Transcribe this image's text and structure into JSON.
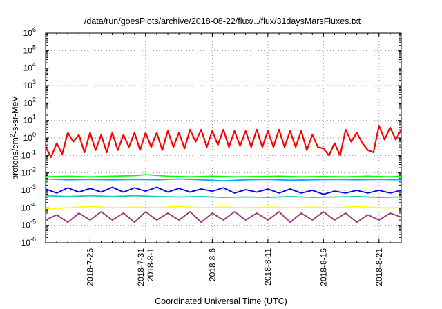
{
  "chart_data": {
    "type": "line",
    "title": "/data/run/goesPlots/archive/2018-08-22/flux/../flux/31daysMarsFluxes.txt",
    "xlabel": "Coordinated Universal Time (UTC)",
    "ylabel": "protons/cm2-s-sr-MeV",
    "ylabel_parts": {
      "pre": "protons/cm",
      "sup": "2",
      "post": "-s-sr-MeV"
    },
    "y_scale": "log",
    "ylim": [
      1e-06,
      1000000.0
    ],
    "y_ticks": [
      {
        "exp": -6,
        "base": "10",
        "sup": "-6"
      },
      {
        "exp": -5,
        "base": "10",
        "sup": "-5"
      },
      {
        "exp": -4,
        "base": "10",
        "sup": "-4"
      },
      {
        "exp": -3,
        "base": "10",
        "sup": "-3"
      },
      {
        "exp": -2,
        "base": "10",
        "sup": "-2"
      },
      {
        "exp": -1,
        "base": "10",
        "sup": "-1"
      },
      {
        "exp": 0,
        "base": "10",
        "sup": "0"
      },
      {
        "exp": 1,
        "base": "10",
        "sup": "1"
      },
      {
        "exp": 2,
        "base": "10",
        "sup": "2"
      },
      {
        "exp": 3,
        "base": "10",
        "sup": "3"
      },
      {
        "exp": 4,
        "base": "10",
        "sup": "4"
      },
      {
        "exp": 5,
        "base": "10",
        "sup": "5"
      },
      {
        "exp": 6,
        "base": "10",
        "sup": "6"
      }
    ],
    "xlim": [
      "2018-07-22",
      "2018-08-23"
    ],
    "x_ticks": [
      {
        "date": "2018-07-26",
        "lines": [
          "2018-7-26"
        ]
      },
      {
        "date": "2018-07-31",
        "lines": [
          "2018-7-31",
          "2018-8-1"
        ]
      },
      {
        "date": "2018-08-06",
        "lines": [
          "2018-8-6"
        ]
      },
      {
        "date": "2018-08-11",
        "lines": [
          "2018-8-11"
        ]
      },
      {
        "date": "2018-08-16",
        "lines": [
          "2018-8-16"
        ]
      },
      {
        "date": "2018-08-21",
        "lines": [
          "2018-8-21"
        ]
      }
    ],
    "grid": true,
    "series": [
      {
        "color": "#ff0000",
        "x": [
          "2018-07-22",
          "2018-07-22.5",
          "2018-07-23",
          "2018-07-23.5",
          "2018-07-24",
          "2018-07-24.5",
          "2018-07-25",
          "2018-07-25.5",
          "2018-07-26",
          "2018-07-26.5",
          "2018-07-27",
          "2018-07-27.5",
          "2018-07-28",
          "2018-07-28.5",
          "2018-07-29",
          "2018-07-29.5",
          "2018-07-30",
          "2018-07-30.5",
          "2018-07-31",
          "2018-07-31.5",
          "2018-08-01",
          "2018-08-01.5",
          "2018-08-02",
          "2018-08-02.5",
          "2018-08-03",
          "2018-08-03.5",
          "2018-08-04",
          "2018-08-04.5",
          "2018-08-05",
          "2018-08-05.5",
          "2018-08-06",
          "2018-08-06.5",
          "2018-08-07",
          "2018-08-07.5",
          "2018-08-08",
          "2018-08-08.5",
          "2018-08-09",
          "2018-08-09.5",
          "2018-08-10",
          "2018-08-10.5",
          "2018-08-11",
          "2018-08-11.5",
          "2018-08-12",
          "2018-08-12.5",
          "2018-08-13",
          "2018-08-13.5",
          "2018-08-14",
          "2018-08-14.5",
          "2018-08-15",
          "2018-08-15.5",
          "2018-08-16",
          "2018-08-16.5",
          "2018-08-17",
          "2018-08-17.5",
          "2018-08-18",
          "2018-08-18.5",
          "2018-08-19",
          "2018-08-19.5",
          "2018-08-20",
          "2018-08-20.5",
          "2018-08-21",
          "2018-08-21.5",
          "2018-08-22",
          "2018-08-22.5",
          "2018-08-23"
        ],
        "y": [
          0.3,
          0.08,
          0.5,
          0.12,
          2,
          0.6,
          1.5,
          0.15,
          2,
          0.2,
          1.5,
          0.15,
          2,
          0.2,
          1.5,
          0.3,
          2,
          0.2,
          2,
          0.3,
          2,
          0.2,
          2.5,
          0.3,
          2,
          0.25,
          3,
          0.6,
          3,
          0.3,
          2.5,
          0.4,
          3,
          0.3,
          2.5,
          0.35,
          2.5,
          0.3,
          3,
          0.3,
          2.5,
          0.3,
          3,
          0.3,
          2.5,
          0.3,
          2.5,
          0.2,
          1.5,
          0.3,
          0.25,
          0.1,
          0.5,
          0.1,
          3,
          0.6,
          2,
          0.5,
          0.2,
          0.15,
          5,
          0.8,
          4,
          0.8,
          3
        ]
      },
      {
        "color": "#00ff00",
        "x": [
          "2018-07-22",
          "2018-07-24",
          "2018-07-26",
          "2018-07-28",
          "2018-07-30",
          "2018-07-31",
          "2018-08-02",
          "2018-08-04",
          "2018-08-06",
          "2018-08-08",
          "2018-08-10",
          "2018-08-12",
          "2018-08-14",
          "2018-08-16",
          "2018-08-18",
          "2018-08-20",
          "2018-08-22",
          "2018-08-23"
        ],
        "y": [
          0.006,
          0.0065,
          0.006,
          0.0065,
          0.007,
          0.008,
          0.0065,
          0.006,
          0.0065,
          0.006,
          0.0062,
          0.0065,
          0.006,
          0.0063,
          0.006,
          0.0065,
          0.006,
          0.0065
        ]
      },
      {
        "color": "#00aaff",
        "x": [
          "2018-07-22",
          "2018-07-24",
          "2018-07-26",
          "2018-07-28",
          "2018-07-30",
          "2018-08-01",
          "2018-08-03",
          "2018-08-05",
          "2018-08-07",
          "2018-08-09",
          "2018-08-11",
          "2018-08-13",
          "2018-08-15",
          "2018-08-17",
          "2018-08-19",
          "2018-08-21",
          "2018-08-23"
        ],
        "y": [
          0.0045,
          0.004,
          0.0042,
          0.004,
          0.0042,
          0.004,
          0.0045,
          0.004,
          0.0035,
          0.004,
          0.0042,
          0.0038,
          0.004,
          0.0042,
          0.004,
          0.0042,
          0.004
        ]
      },
      {
        "color": "#0000ff",
        "x": [
          "2018-07-22",
          "2018-07-23",
          "2018-07-24",
          "2018-07-25",
          "2018-07-26",
          "2018-07-27",
          "2018-07-28",
          "2018-07-29",
          "2018-07-30",
          "2018-07-31",
          "2018-08-01",
          "2018-08-02",
          "2018-08-03",
          "2018-08-04",
          "2018-08-05",
          "2018-08-06",
          "2018-08-07",
          "2018-08-08",
          "2018-08-09",
          "2018-08-10",
          "2018-08-11",
          "2018-08-12",
          "2018-08-13",
          "2018-08-14",
          "2018-08-15",
          "2018-08-16",
          "2018-08-17",
          "2018-08-18",
          "2018-08-19",
          "2018-08-20",
          "2018-08-21",
          "2018-08-22",
          "2018-08-23"
        ],
        "y": [
          0.0012,
          0.0007,
          0.0014,
          0.0008,
          0.0013,
          0.0008,
          0.0015,
          0.0008,
          0.0014,
          0.0009,
          0.0015,
          0.0008,
          0.0013,
          0.0008,
          0.0012,
          0.0009,
          0.0014,
          0.0007,
          0.0011,
          0.0008,
          0.0012,
          0.0007,
          0.0012,
          0.0007,
          0.001,
          0.0006,
          0.0009,
          0.0007,
          0.001,
          0.0007,
          0.001,
          0.0007,
          0.001
        ]
      },
      {
        "color": "#22ccaa",
        "x": [
          "2018-07-22",
          "2018-07-24",
          "2018-07-26",
          "2018-07-28",
          "2018-07-30",
          "2018-08-01",
          "2018-08-03",
          "2018-08-05",
          "2018-08-07",
          "2018-08-09",
          "2018-08-11",
          "2018-08-13",
          "2018-08-15",
          "2018-08-17",
          "2018-08-19",
          "2018-08-21",
          "2018-08-23"
        ],
        "y": [
          0.0005,
          0.00045,
          0.0005,
          0.00045,
          0.0005,
          0.00045,
          0.00042,
          0.00045,
          0.0004,
          0.00042,
          0.0004,
          0.00045,
          0.0004,
          0.00042,
          0.00045,
          0.0004,
          0.00042
        ]
      },
      {
        "color": "#ffff00",
        "x": [
          "2018-07-22",
          "2018-07-24",
          "2018-07-26",
          "2018-07-28",
          "2018-07-30",
          "2018-08-01",
          "2018-08-03",
          "2018-08-05",
          "2018-08-07",
          "2018-08-09",
          "2018-08-11",
          "2018-08-13",
          "2018-08-15",
          "2018-08-17",
          "2018-08-19",
          "2018-08-21",
          "2018-08-23"
        ],
        "y": [
          9e-05,
          0.0001,
          0.00012,
          0.0001,
          0.00011,
          0.0001,
          0.00012,
          0.0001,
          0.00011,
          0.0001,
          0.00011,
          0.0001,
          0.00011,
          0.0001,
          0.00012,
          0.0001,
          0.0001
        ]
      },
      {
        "color": "#993366",
        "x": [
          "2018-07-22",
          "2018-07-23",
          "2018-07-24",
          "2018-07-25",
          "2018-07-26",
          "2018-07-27",
          "2018-07-28",
          "2018-07-29",
          "2018-07-30",
          "2018-07-31",
          "2018-08-01",
          "2018-08-02",
          "2018-08-03",
          "2018-08-04",
          "2018-08-05",
          "2018-08-06",
          "2018-08-07",
          "2018-08-08",
          "2018-08-09",
          "2018-08-10",
          "2018-08-11",
          "2018-08-12",
          "2018-08-13",
          "2018-08-14",
          "2018-08-15",
          "2018-08-16",
          "2018-08-17",
          "2018-08-18",
          "2018-08-19",
          "2018-08-20",
          "2018-08-21",
          "2018-08-22",
          "2018-08-23"
        ],
        "y": [
          2e-05,
          4e-05,
          1.5e-05,
          5e-05,
          2e-05,
          6e-05,
          2e-05,
          5e-05,
          1.5e-05,
          6e-05,
          2e-05,
          5e-05,
          2e-05,
          6e-05,
          1.5e-05,
          5e-05,
          2e-05,
          6e-05,
          2e-05,
          5e-05,
          2e-05,
          6e-05,
          1.5e-05,
          5e-05,
          2e-05,
          6e-05,
          2e-05,
          5e-05,
          1.5e-05,
          4e-05,
          2e-05,
          5e-05,
          3e-05
        ]
      }
    ]
  }
}
